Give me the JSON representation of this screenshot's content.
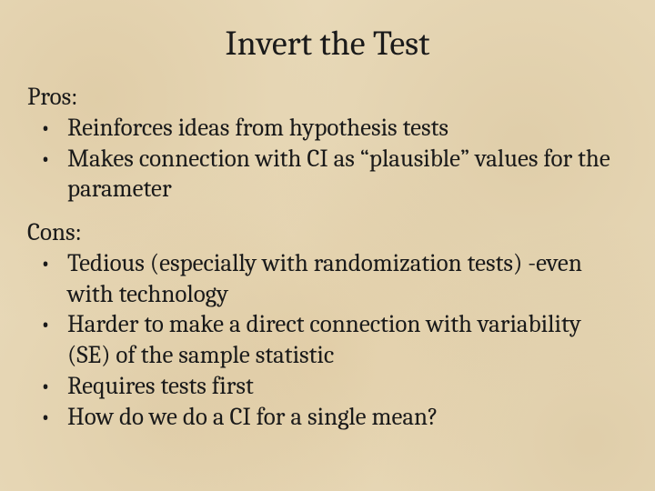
{
  "slide": {
    "title": "Invert the Test",
    "pros_label": "Pros:",
    "pros": [
      " Reinforces ideas from hypothesis tests",
      "Makes connection with CI as “plausible” values for the parameter"
    ],
    "cons_label": "Cons:",
    "cons": [
      "Tedious (especially with  randomization tests) -even with technology",
      " Harder to make a direct connection with variability (SE) of the sample statistic",
      " Requires tests first",
      " How do we do a CI for a single mean?"
    ],
    "background_color": "#e8d9b8",
    "text_color": "#1a1a1a",
    "title_fontsize": 38,
    "body_fontsize": 27,
    "font_family": "Cambria, Georgia, serif"
  }
}
